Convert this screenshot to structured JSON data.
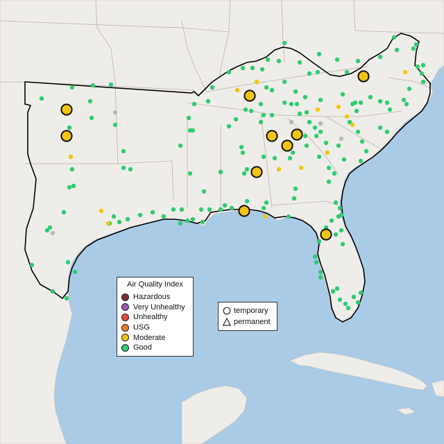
{
  "legend": {
    "title": "Air Quality Index",
    "categories": [
      {
        "label": "Hazardous",
        "color": "#7e2a2a"
      },
      {
        "label": "Very Unhealthy",
        "color": "#9b59b6"
      },
      {
        "label": "Unhealthy",
        "color": "#e74c3c"
      },
      {
        "label": "USG",
        "color": "#e67e22"
      },
      {
        "label": "Moderate",
        "color": "#f1c40f"
      },
      {
        "label": "Good",
        "color": "#2ecc71"
      }
    ]
  },
  "type_legend": {
    "temporary_label": "temporary",
    "permanent_label": "permanent"
  },
  "colors": {
    "water": "#a9cbe6",
    "land": "#efedea",
    "region_outline": "#000000"
  },
  "icons": {
    "temporary": "circle-icon",
    "permanent": "triangle-icon"
  }
}
